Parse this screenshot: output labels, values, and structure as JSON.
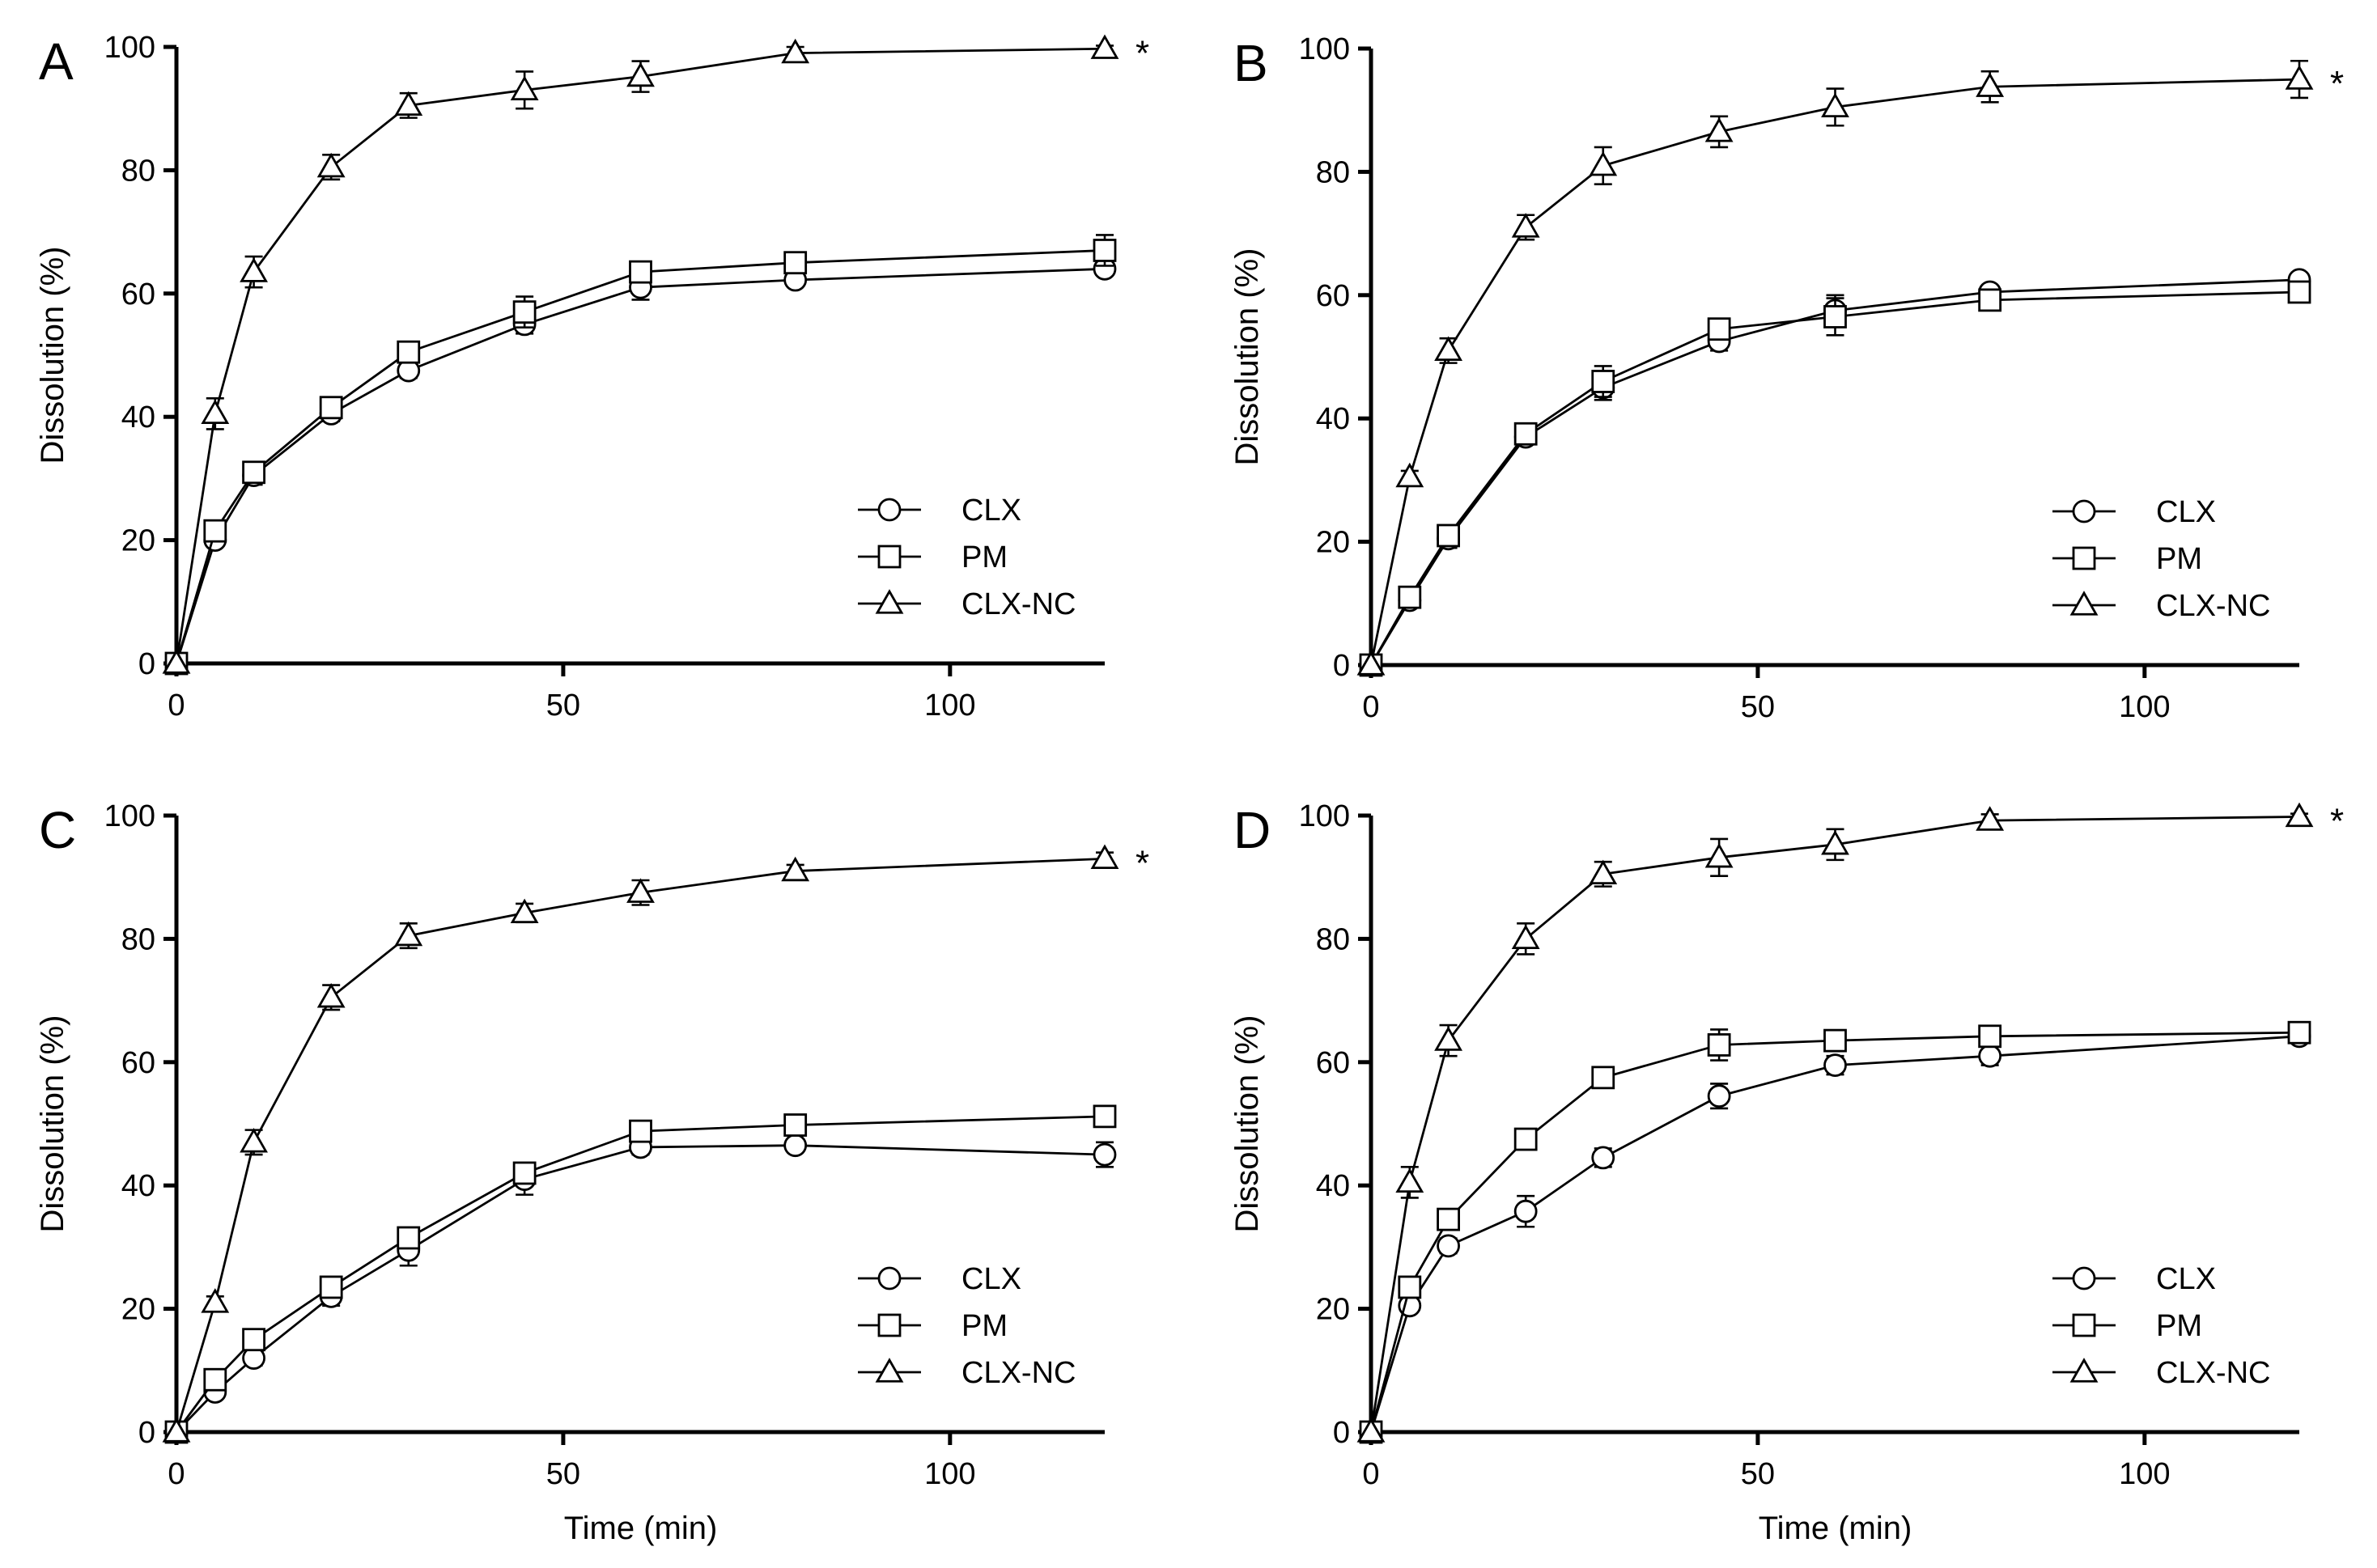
{
  "figure": {
    "x_ticks": [
      "0",
      "50",
      "100"
    ],
    "y_ticks": [
      "0",
      "20",
      "40",
      "60",
      "80",
      "100"
    ]
  },
  "chart_data": [
    {
      "type": "line",
      "panel": "A",
      "title": "",
      "xlabel": "",
      "ylabel": "Dissolution (%)",
      "xlim": [
        0,
        120
      ],
      "ylim": [
        0,
        100
      ],
      "x": [
        0,
        5,
        10,
        20,
        30,
        45,
        60,
        80,
        120
      ],
      "legend_position": "bottom-right",
      "annotation": "*",
      "series": [
        {
          "name": "CLX",
          "marker": "circle",
          "values": [
            0,
            20,
            30.5,
            40.5,
            47.5,
            55,
            61,
            62.2,
            64
          ],
          "errors": [
            0,
            1,
            1.5,
            1.2,
            1.2,
            1.5,
            2,
            1,
            1
          ]
        },
        {
          "name": "PM",
          "marker": "square",
          "values": [
            0,
            21.5,
            31,
            41.5,
            50.5,
            57,
            63.5,
            65,
            67
          ],
          "errors": [
            0,
            1,
            1.5,
            1.2,
            1.5,
            2.5,
            1.5,
            1.2,
            2.5
          ]
        },
        {
          "name": "CLX-NC",
          "marker": "triangle",
          "values": [
            0,
            40.5,
            63.5,
            80.5,
            90.5,
            93,
            95.2,
            99,
            99.7
          ],
          "errors": [
            0,
            2.5,
            2.5,
            2,
            2,
            3,
            2.5,
            1,
            0.5
          ]
        }
      ]
    },
    {
      "type": "line",
      "panel": "B",
      "title": "",
      "xlabel": "",
      "ylabel": "Dissolution (%)",
      "xlim": [
        0,
        120
      ],
      "ylim": [
        0,
        100
      ],
      "x": [
        0,
        5,
        10,
        20,
        30,
        45,
        60,
        80,
        120
      ],
      "legend_position": "bottom-right",
      "annotation": "*",
      "series": [
        {
          "name": "CLX",
          "marker": "circle",
          "values": [
            0,
            10.5,
            20.5,
            37,
            45,
            52.5,
            57.5,
            60.5,
            62.5
          ],
          "errors": [
            0,
            1,
            1.5,
            1.2,
            2,
            1.5,
            2.5,
            1,
            1
          ]
        },
        {
          "name": "PM",
          "marker": "square",
          "values": [
            0,
            11,
            21,
            37.5,
            46,
            54.5,
            56.5,
            59.2,
            60.5
          ],
          "errors": [
            0,
            1,
            1.5,
            1.2,
            2.5,
            1.5,
            3,
            1,
            1
          ]
        },
        {
          "name": "CLX-NC",
          "marker": "triangle",
          "values": [
            0,
            30.5,
            51,
            71,
            81,
            86.5,
            90.5,
            93.8,
            95
          ],
          "errors": [
            0,
            1,
            2,
            2,
            3,
            2.5,
            3,
            2.5,
            3
          ]
        }
      ]
    },
    {
      "type": "line",
      "panel": "C",
      "title": "",
      "xlabel": "Time (min)",
      "ylabel": "Dissolution (%)",
      "xlim": [
        0,
        120
      ],
      "ylim": [
        0,
        100
      ],
      "x": [
        0,
        5,
        10,
        20,
        30,
        45,
        60,
        80,
        120
      ],
      "legend_position": "bottom-right",
      "annotation": "*",
      "series": [
        {
          "name": "CLX",
          "marker": "circle",
          "values": [
            0,
            6.5,
            12,
            22,
            29.5,
            41,
            46.2,
            46.5,
            45
          ],
          "errors": [
            0,
            1,
            1.2,
            1.5,
            2.5,
            2.5,
            1.2,
            1,
            2
          ]
        },
        {
          "name": "PM",
          "marker": "square",
          "values": [
            0,
            8.5,
            15,
            23.5,
            31.5,
            42,
            48.8,
            49.8,
            51.2
          ],
          "errors": [
            0,
            1,
            1.2,
            1.5,
            1.5,
            1.5,
            1.2,
            1,
            1
          ]
        },
        {
          "name": "CLX-NC",
          "marker": "triangle",
          "values": [
            0,
            21,
            47,
            70.5,
            80.5,
            84.2,
            87.5,
            91,
            93
          ],
          "errors": [
            0,
            1,
            2,
            2,
            2,
            1.5,
            2,
            1,
            1
          ]
        }
      ]
    },
    {
      "type": "line",
      "panel": "D",
      "title": "",
      "xlabel": "Time (min)",
      "ylabel": "Dissolution (%)",
      "xlim": [
        0,
        120
      ],
      "ylim": [
        0,
        100
      ],
      "x": [
        0,
        5,
        10,
        20,
        30,
        45,
        60,
        80,
        120
      ],
      "legend_position": "bottom-right",
      "annotation": "*",
      "series": [
        {
          "name": "CLX",
          "marker": "circle",
          "values": [
            0,
            20.5,
            30.2,
            35.8,
            44.5,
            54.5,
            59.5,
            61,
            64.2
          ],
          "errors": [
            0,
            1,
            1.2,
            2.5,
            1.5,
            2,
            1.5,
            1.5,
            1
          ]
        },
        {
          "name": "PM",
          "marker": "square",
          "values": [
            0,
            23.5,
            34.5,
            47.5,
            57.5,
            62.8,
            63.5,
            64.2,
            64.8
          ],
          "errors": [
            0,
            1,
            1.5,
            1.2,
            1,
            2.5,
            1,
            1,
            1
          ]
        },
        {
          "name": "CLX-NC",
          "marker": "triangle",
          "values": [
            0,
            40.5,
            63.5,
            80,
            90.5,
            93.2,
            95.3,
            99.2,
            99.8
          ],
          "errors": [
            0,
            2.5,
            2.5,
            2.5,
            2,
            3,
            2.5,
            1,
            0.5
          ]
        }
      ]
    }
  ]
}
